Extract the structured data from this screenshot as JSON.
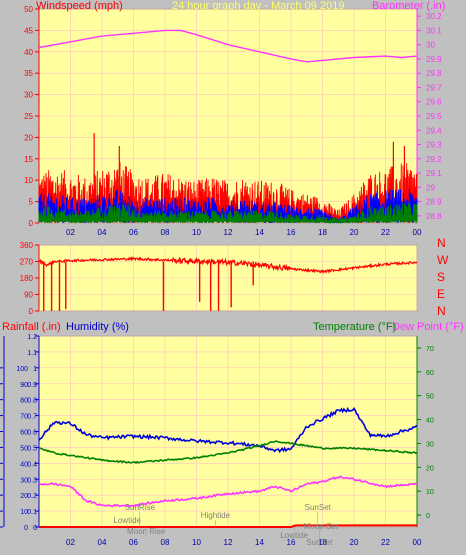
{
  "header": {
    "left_title": "Windspeed (mph)",
    "center_title": "24 hour graph day - March 09 2019",
    "right_title": "Barometer (.in)"
  },
  "lower_header": {
    "rainfall": "Rainfall (.in)",
    "humidity": "Humidity (%)",
    "temperature": "Temperature (°F)",
    "dewpoint": "Dew Point (°F)"
  },
  "compass": [
    "N",
    "W",
    "S",
    "E",
    "N"
  ],
  "colors": {
    "background": "#c0c0c0",
    "plot": "#ffffa0",
    "wind": "#ff0000",
    "barometer": "#ff33ff",
    "gust": "#0000ff",
    "average": "#008000",
    "humidity": "#0000dd",
    "temperature": "#008000",
    "dewpoint": "#ff33ff",
    "rain_axis": "#0000cc",
    "temp_axis": "#008000",
    "wind_axis": "#ff0000"
  },
  "chart_data": [
    {
      "type": "line",
      "name": "wind-barometer",
      "x_ticks": [
        "02",
        "04",
        "06",
        "08",
        "10",
        "12",
        "14",
        "16",
        "18",
        "20",
        "22",
        "00"
      ],
      "y_left_ticks": [
        "0",
        "5",
        "10",
        "15",
        "20",
        "25",
        "30",
        "35",
        "40",
        "45",
        "50"
      ],
      "y_left_range": [
        0,
        50
      ],
      "y_right_ticks": [
        "28.8",
        "28.9",
        "29",
        "29.1",
        "29.2",
        "29.3",
        "29.4",
        "29.5",
        "29.6",
        "29.7",
        "29.8",
        "29.9",
        "30",
        "30.1",
        "30.2"
      ],
      "y_right_range": [
        28.75,
        30.25
      ],
      "barometer_points": [
        [
          0,
          29.98
        ],
        [
          2,
          30.02
        ],
        [
          4,
          30.06
        ],
        [
          6,
          30.08
        ],
        [
          8,
          30.1
        ],
        [
          9,
          30.1
        ],
        [
          10,
          30.07
        ],
        [
          12,
          30.0
        ],
        [
          14,
          29.95
        ],
        [
          16,
          29.9
        ],
        [
          17,
          29.88
        ],
        [
          18,
          29.89
        ],
        [
          20,
          29.91
        ],
        [
          22,
          29.92
        ],
        [
          23,
          29.91
        ],
        [
          24,
          29.92
        ]
      ],
      "wind_envelope": {
        "hours": [
          0,
          1,
          2,
          3,
          4,
          5,
          6,
          7,
          8,
          9,
          10,
          11,
          12,
          13,
          14,
          15,
          16,
          17,
          18,
          19,
          20,
          21,
          22,
          23,
          24
        ],
        "wind_max": [
          12,
          13,
          12,
          11,
          13,
          15,
          12,
          11,
          12,
          11,
          10,
          11,
          10,
          11,
          10,
          10,
          8,
          7,
          6,
          3,
          7,
          12,
          13,
          14,
          14
        ],
        "gust_max": [
          7,
          7,
          6,
          6,
          7,
          8,
          6,
          6,
          6,
          6,
          6,
          6,
          5,
          6,
          5,
          5,
          4,
          4,
          3,
          1,
          4,
          7,
          8,
          8,
          8
        ],
        "avg_max": [
          4,
          4,
          3,
          3,
          4,
          5,
          4,
          3,
          3,
          3,
          3,
          3,
          3,
          3,
          3,
          3,
          2,
          2,
          2,
          1,
          2,
          4,
          4,
          5,
          5
        ]
      },
      "spikes": [
        [
          3.5,
          21
        ],
        [
          5.1,
          18
        ],
        [
          22.5,
          19
        ],
        [
          23.2,
          18
        ]
      ]
    },
    {
      "type": "line",
      "name": "wind-direction",
      "y_ticks": [
        "0",
        "90",
        "180",
        "270",
        "360"
      ],
      "y_range": [
        0,
        360
      ],
      "direction_points": [
        [
          0.0,
          275
        ],
        [
          0.5,
          250
        ],
        [
          1.0,
          270
        ],
        [
          2,
          275
        ],
        [
          4,
          280
        ],
        [
          6,
          285
        ],
        [
          8,
          278
        ],
        [
          10,
          272
        ],
        [
          12,
          265
        ],
        [
          13,
          260
        ],
        [
          14,
          250
        ],
        [
          16,
          230
        ],
        [
          18,
          215
        ],
        [
          20,
          235
        ],
        [
          22,
          255
        ],
        [
          24,
          265
        ]
      ],
      "dips": [
        [
          0.3,
          0
        ],
        [
          0.8,
          0
        ],
        [
          1.3,
          0
        ],
        [
          1.7,
          10
        ],
        [
          7.9,
          0
        ],
        [
          10.2,
          50
        ],
        [
          10.9,
          0
        ],
        [
          11.4,
          0
        ],
        [
          12.2,
          20
        ],
        [
          13.6,
          140
        ]
      ]
    },
    {
      "type": "line",
      "name": "rain-humidity-temperature",
      "rain_ticks": [
        "0",
        "0.1",
        "0.2",
        "0.3",
        "0.4",
        "0.5",
        "0.6",
        "0.7",
        "0.8",
        "0.9",
        "1",
        "1.1",
        "1.2"
      ],
      "rain_range": [
        0,
        1.2
      ],
      "humidity_ticks": [
        "0",
        "10",
        "20",
        "30",
        "40",
        "50",
        "60",
        "70",
        "80",
        "90",
        "100"
      ],
      "humidity_range": [
        0,
        100
      ],
      "temperature_ticks": [
        "0",
        "10",
        "20",
        "30",
        "40",
        "50",
        "60",
        "70"
      ],
      "temperature_range": [
        -5,
        75
      ],
      "humidity_points": [
        [
          0,
          55
        ],
        [
          1,
          66
        ],
        [
          2,
          65
        ],
        [
          3,
          58
        ],
        [
          4,
          56
        ],
        [
          6,
          57
        ],
        [
          8,
          56
        ],
        [
          10,
          54
        ],
        [
          12,
          53
        ],
        [
          14,
          51
        ],
        [
          15,
          48
        ],
        [
          16,
          49
        ],
        [
          17,
          63
        ],
        [
          19,
          73
        ],
        [
          20,
          74
        ],
        [
          21,
          58
        ],
        [
          22,
          57
        ],
        [
          23,
          60
        ],
        [
          24,
          63
        ]
      ],
      "temperature_points": [
        [
          0,
          28
        ],
        [
          1,
          26
        ],
        [
          2,
          25
        ],
        [
          4,
          23
        ],
        [
          6,
          22
        ],
        [
          8,
          23
        ],
        [
          10,
          24
        ],
        [
          12,
          26
        ],
        [
          14,
          29
        ],
        [
          15,
          31
        ],
        [
          16,
          30
        ],
        [
          17,
          29
        ],
        [
          18,
          28
        ],
        [
          20,
          28
        ],
        [
          22,
          27
        ],
        [
          24,
          26
        ]
      ],
      "dewpoint_points": [
        [
          0,
          13
        ],
        [
          1,
          13
        ],
        [
          2,
          12
        ],
        [
          3,
          6
        ],
        [
          4,
          4
        ],
        [
          6,
          4
        ],
        [
          8,
          6
        ],
        [
          10,
          7
        ],
        [
          12,
          9
        ],
        [
          14,
          10
        ],
        [
          15,
          12
        ],
        [
          16,
          10
        ],
        [
          17,
          13
        ],
        [
          18,
          14
        ],
        [
          19,
          16
        ],
        [
          20,
          15
        ],
        [
          22,
          12
        ],
        [
          24,
          13
        ]
      ],
      "rain_points": [
        [
          0,
          0
        ],
        [
          16,
          0
        ],
        [
          16.3,
          0.01
        ],
        [
          24,
          0.01
        ]
      ],
      "annotations": [
        {
          "label": "SunRise",
          "hour": 6.4,
          "level": "upper"
        },
        {
          "label": "Lowtide",
          "hour": 5.6,
          "level": "middle"
        },
        {
          "label": "Moon Rise",
          "hour": 6.8,
          "level": "lower"
        },
        {
          "label": "Hightide",
          "hour": 11.2,
          "level": "middle2"
        },
        {
          "label": "SunSet",
          "hour": 17.7,
          "level": "upper"
        },
        {
          "label": "Moon Set",
          "hour": 17.9,
          "level": "middle3"
        },
        {
          "label": "Lowtide",
          "hour": 16.2,
          "level": "lower2"
        },
        {
          "label": "SunSet",
          "hour": 17.8,
          "level": "bottom"
        }
      ],
      "x_ticks": [
        "02",
        "04",
        "06",
        "08",
        "10",
        "12",
        "14",
        "16",
        "18",
        "20",
        "22",
        "00"
      ]
    }
  ]
}
